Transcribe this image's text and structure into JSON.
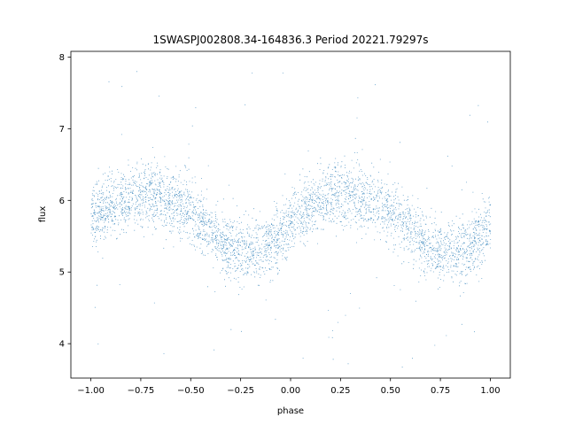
{
  "chart_data": {
    "type": "scatter",
    "title": "1SWASPJ002808.34-164836.3 Period 20221.79297s",
    "xlabel": "phase",
    "ylabel": "flux",
    "xlim": [
      -1.1,
      1.1
    ],
    "ylim": [
      3.52,
      8.08
    ],
    "grid": false,
    "point_color": "#1f77b4",
    "x_ticks": [
      -1.0,
      -0.75,
      -0.5,
      -0.25,
      0.0,
      0.25,
      0.5,
      0.75,
      1.0
    ],
    "x_tick_labels": [
      "−1.00",
      "−0.75",
      "−0.50",
      "−0.25",
      "0.00",
      "0.25",
      "0.50",
      "0.75",
      "1.00"
    ],
    "y_ticks": [
      4,
      5,
      6,
      7,
      8
    ],
    "y_tick_labels": [
      "4",
      "5",
      "6",
      "7",
      "8"
    ],
    "series": [
      {
        "trend_x": [
          -1.0,
          -0.95,
          -0.9,
          -0.85,
          -0.8,
          -0.75,
          -0.7,
          -0.65,
          -0.6,
          -0.55,
          -0.5,
          -0.45,
          -0.4,
          -0.35,
          -0.3,
          -0.25,
          -0.2,
          -0.15,
          -0.1,
          -0.05,
          0.0,
          0.05,
          0.1,
          0.15,
          0.2,
          0.25,
          0.3,
          0.35,
          0.4,
          0.45,
          0.5,
          0.55,
          0.6,
          0.65,
          0.7,
          0.75,
          0.8,
          0.85,
          0.9,
          0.95,
          1.0
        ],
        "trend_y": [
          5.75,
          5.85,
          5.93,
          6.0,
          6.05,
          6.09,
          6.1,
          6.07,
          6.02,
          5.95,
          5.85,
          5.72,
          5.58,
          5.45,
          5.35,
          5.3,
          5.28,
          5.32,
          5.4,
          5.52,
          5.65,
          5.78,
          5.9,
          6.0,
          6.06,
          6.1,
          6.1,
          6.06,
          6.0,
          5.92,
          5.82,
          5.7,
          5.55,
          5.42,
          5.33,
          5.28,
          5.27,
          5.3,
          5.38,
          5.5,
          5.65
        ],
        "scatter_sigma": 0.22,
        "n_points": 18000,
        "outlier_fraction": 0.02,
        "outlier_range": [
          3.6,
          7.9
        ]
      }
    ]
  }
}
